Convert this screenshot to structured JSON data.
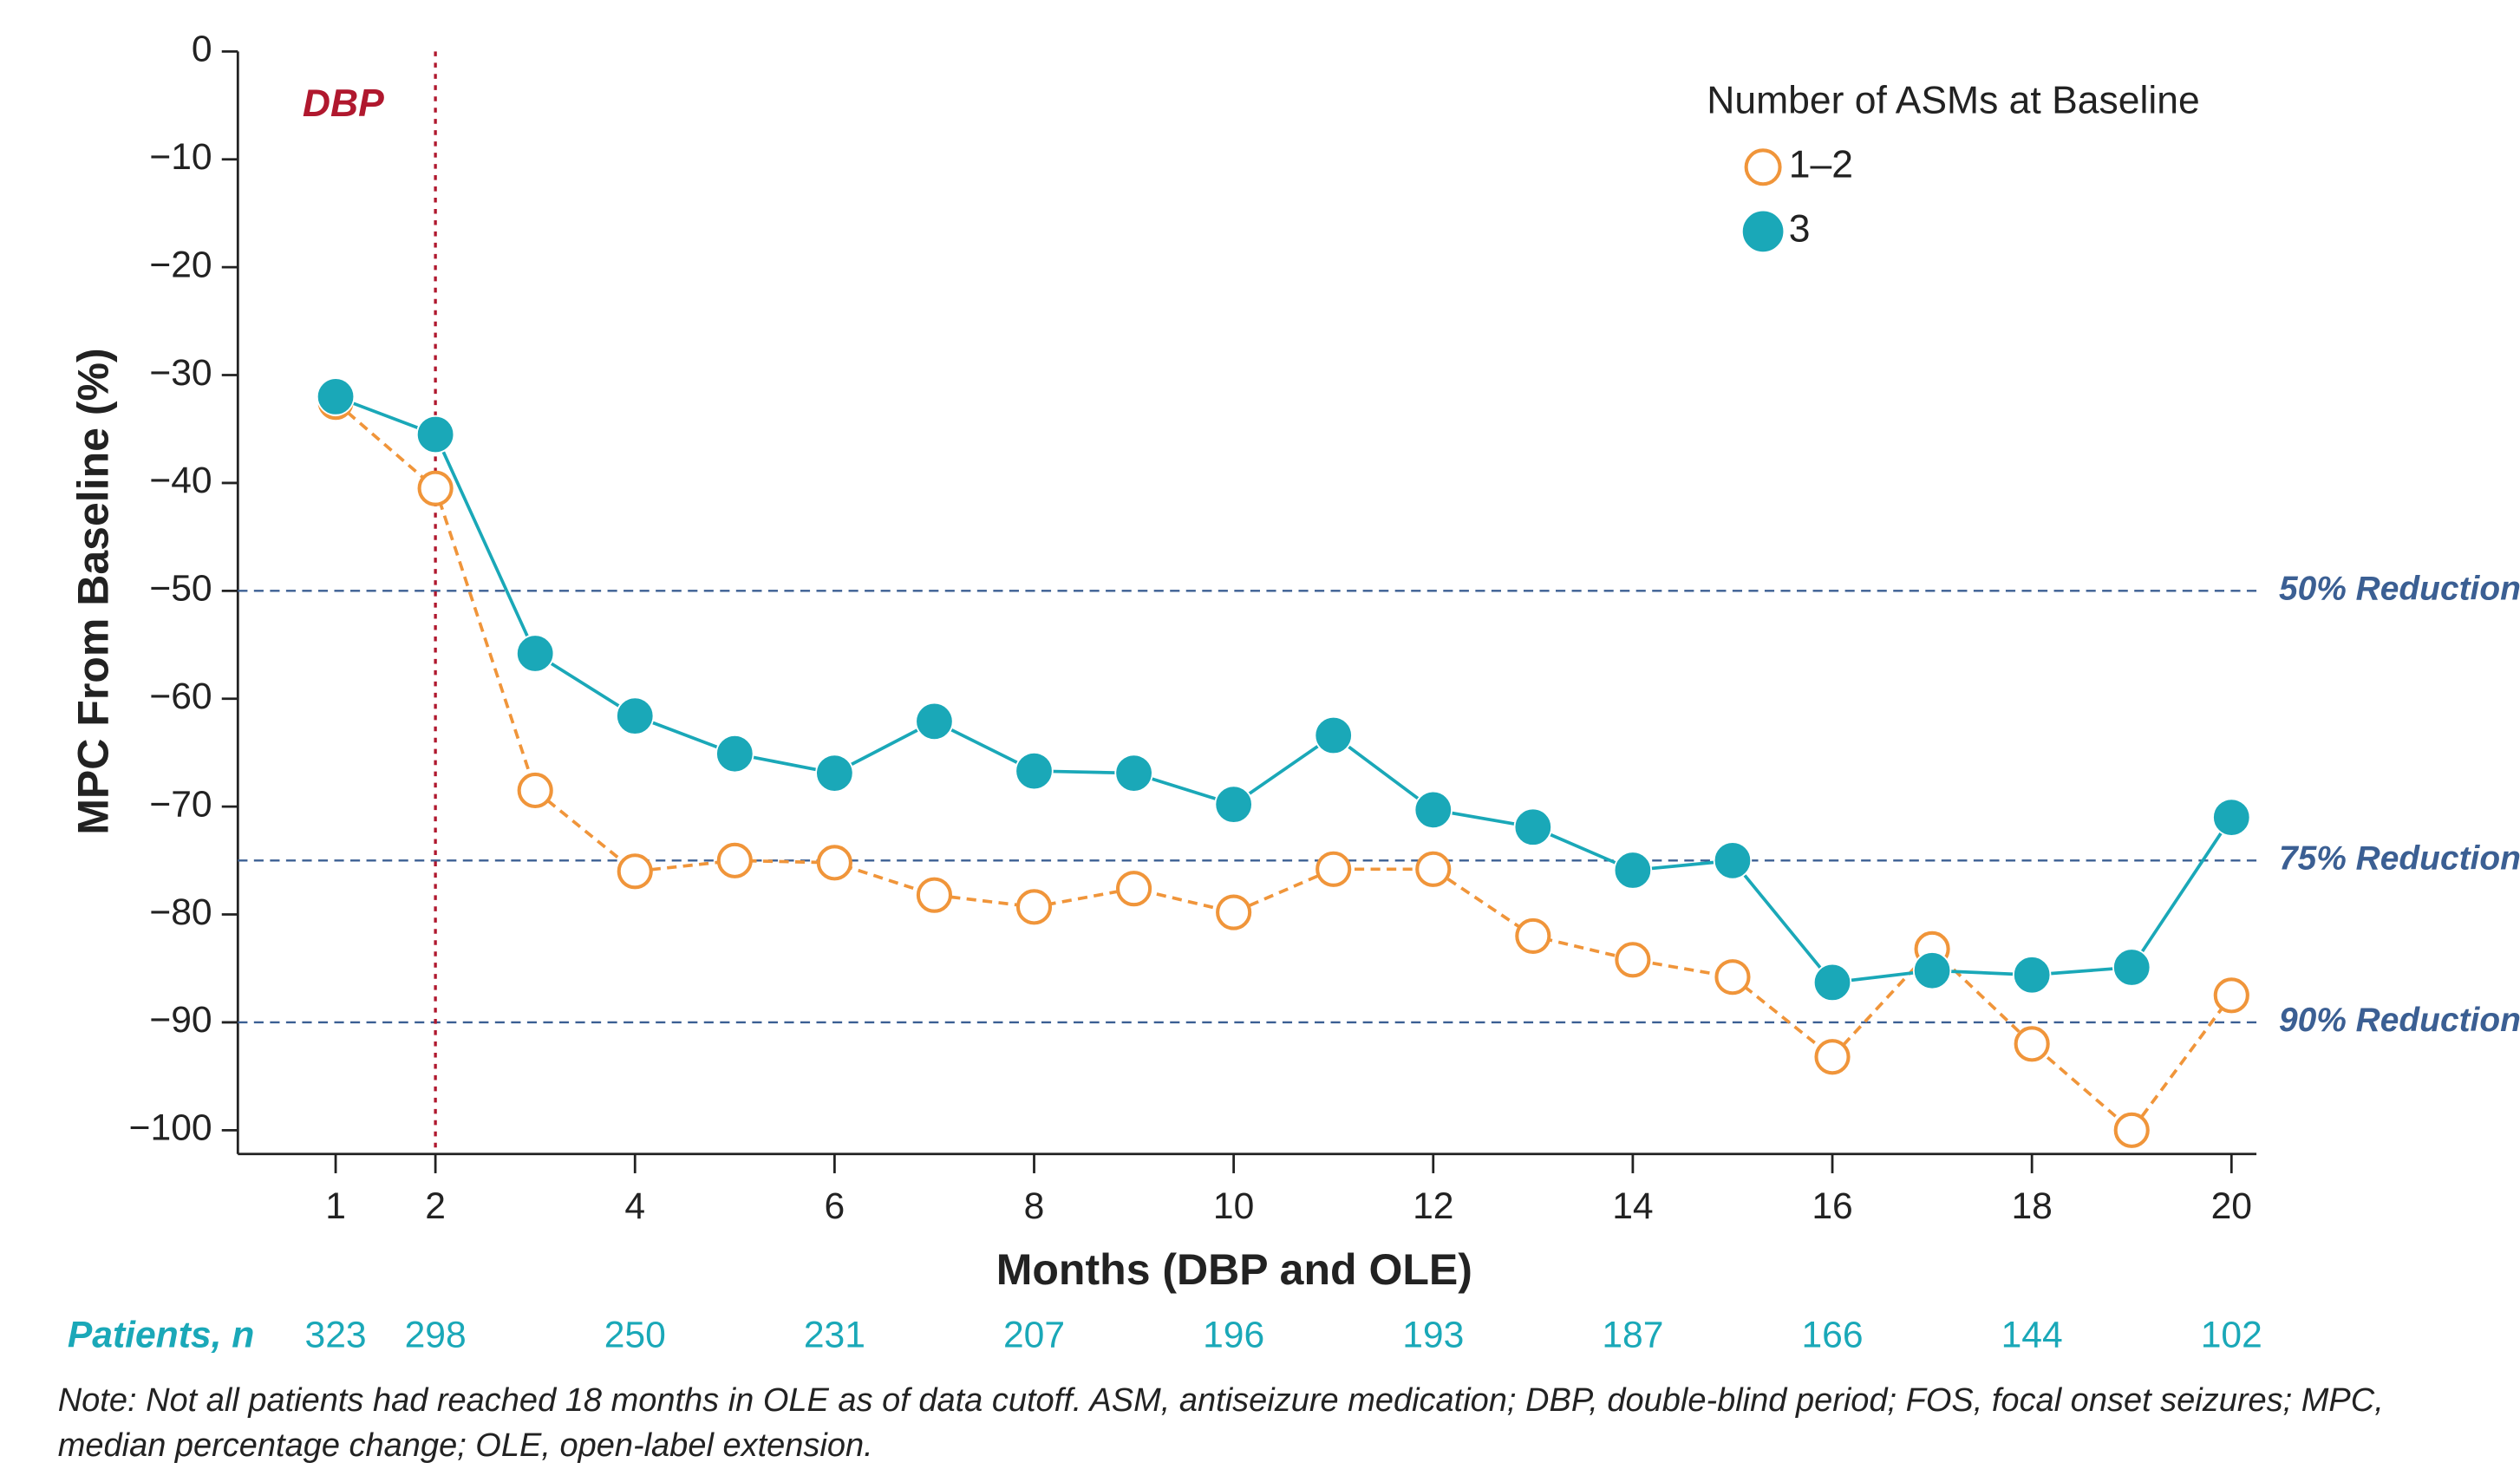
{
  "chart_data": {
    "type": "line",
    "x_label": "Months (DBP and OLE)",
    "y_label": "MPC From Baseline (%)",
    "legend_title": "Number of ASMs at Baseline",
    "x": [
      1,
      2,
      3,
      4,
      5,
      6,
      7,
      8,
      9,
      10,
      11,
      12,
      13,
      14,
      15,
      16,
      17,
      18,
      19,
      20
    ],
    "series": [
      {
        "name": "1–2",
        "color": "#f0953a",
        "dashed": true,
        "filled": false,
        "values": [
          -32.5,
          -40.5,
          -68.5,
          -76,
          -75,
          -75.2,
          -78.2,
          -79.3,
          -77.6,
          -79.8,
          -75.8,
          -75.8,
          -82,
          -84.2,
          -85.8,
          -93.2,
          -83.2,
          -92,
          -100,
          -87.5
        ]
      },
      {
        "name": "3",
        "color": "#1aa8b8",
        "dashed": false,
        "filled": true,
        "values": [
          -32,
          -35.5,
          -55.8,
          -61.6,
          -65.1,
          -66.9,
          -62.1,
          -66.7,
          -66.9,
          -69.8,
          -63.4,
          -70.3,
          -71.9,
          -75.9,
          -75,
          -86.3,
          -85.2,
          -85.6,
          -84.9,
          -71
        ]
      }
    ],
    "xlim": [
      0.02,
      20.25
    ],
    "ylim": [
      -102.2,
      0
    ],
    "xticks": [
      1,
      2,
      4,
      6,
      8,
      10,
      12,
      14,
      16,
      18,
      20
    ],
    "yticks": [
      {
        "value": 0,
        "label": "0"
      },
      {
        "value": -10,
        "label": "−10"
      },
      {
        "value": -20,
        "label": "−20"
      },
      {
        "value": -30,
        "label": "−30"
      },
      {
        "value": -40,
        "label": "−40"
      },
      {
        "value": -50,
        "label": "−50"
      },
      {
        "value": -60,
        "label": "−60"
      },
      {
        "value": -70,
        "label": "−70"
      },
      {
        "value": -80,
        "label": "−80"
      },
      {
        "value": -90,
        "label": "−90"
      },
      {
        "value": -100,
        "label": "−100"
      }
    ],
    "reference_lines": [
      {
        "value": -50,
        "label": "50% Reduction"
      },
      {
        "value": -75,
        "label": "75% Reduction"
      },
      {
        "value": -90,
        "label": "90% Reduction"
      }
    ],
    "period_line": {
      "x": 2,
      "label": "DBP"
    },
    "patients": {
      "label": "Patients, n",
      "x": [
        1,
        2,
        4,
        6,
        8,
        10,
        12,
        14,
        16,
        18,
        20
      ],
      "values": [
        323,
        298,
        250,
        231,
        207,
        196,
        193,
        187,
        166,
        144,
        102
      ]
    },
    "note": "Note: Not all patients had reached 18 months in OLE as of data cutoff. ASM, antiseizure medication; DBP, double-blind period; FOS, focal onset seizures; MPC, median percentage change; OLE, open-label extension."
  }
}
